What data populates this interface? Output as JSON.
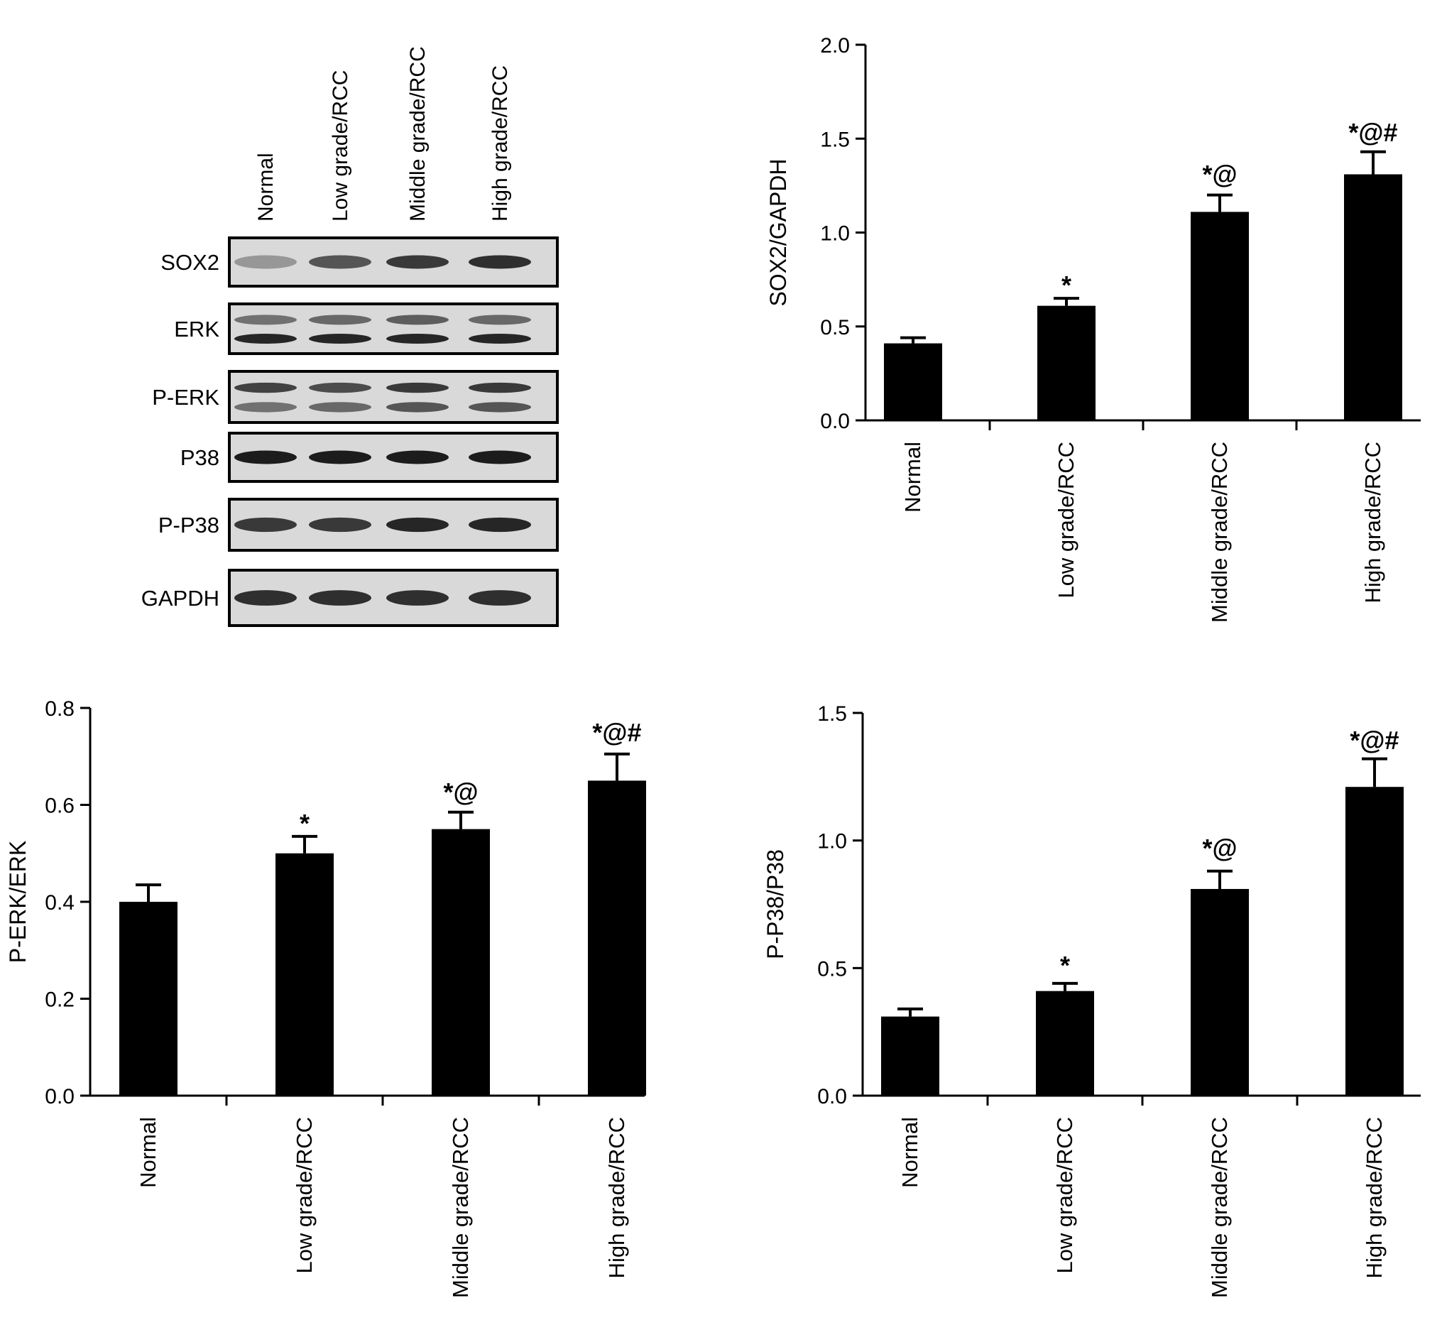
{
  "blot": {
    "lanes": [
      "Normal",
      "Low grade/RCC",
      "Middle grade/RCC",
      "High grade/RCC"
    ],
    "rows": [
      "SOX2",
      "ERK",
      "P-ERK",
      "P38",
      "P-P38",
      "GAPDH"
    ],
    "band_color": "#1c1c1c",
    "background_color": "#d9d9d9"
  },
  "chart_data": [
    {
      "type": "bar",
      "categories": [
        "Normal",
        "Low grade/RCC",
        "Middle grade/RCC",
        "High grade/RCC"
      ],
      "values": [
        0.41,
        0.61,
        1.11,
        1.31
      ],
      "errors": [
        0.03,
        0.04,
        0.09,
        0.12
      ],
      "significance": [
        "",
        "*",
        "*@",
        "*@#"
      ],
      "ylabel": "SOX2/GAPDH",
      "ylim": [
        0,
        2.0
      ],
      "yticks": [
        "0.0",
        "0.5",
        "1.0",
        "1.5",
        "2.0"
      ],
      "bar_color": "#000000"
    },
    {
      "type": "bar",
      "categories": [
        "Normal",
        "Low grade/RCC",
        "Middle grade/RCC",
        "High grade/RCC"
      ],
      "values": [
        0.4,
        0.5,
        0.55,
        0.65
      ],
      "errors": [
        0.035,
        0.035,
        0.035,
        0.055
      ],
      "significance": [
        "",
        "*",
        "*@",
        "*@#"
      ],
      "ylabel": "P-ERK/ERK",
      "ylim": [
        0,
        0.8
      ],
      "yticks": [
        "0.0",
        "0.2",
        "0.4",
        "0.6",
        "0.8"
      ],
      "bar_color": "#000000"
    },
    {
      "type": "bar",
      "categories": [
        "Normal",
        "Low grade/RCC",
        "Middle grade/RCC",
        "High grade/RCC"
      ],
      "values": [
        0.31,
        0.41,
        0.81,
        1.21
      ],
      "errors": [
        0.03,
        0.03,
        0.07,
        0.11
      ],
      "significance": [
        "",
        "*",
        "*@",
        "*@#"
      ],
      "ylabel": "P-P38/P38",
      "ylim": [
        0,
        1.5
      ],
      "yticks": [
        "0.0",
        "0.5",
        "1.0",
        "1.5"
      ],
      "bar_color": "#000000"
    }
  ]
}
